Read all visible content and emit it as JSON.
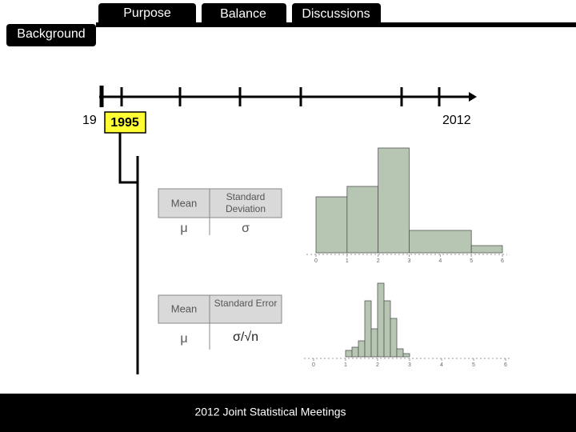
{
  "tabs": [
    "Purpose",
    "Balance",
    "Discussions"
  ],
  "section": "Background",
  "timeline": {
    "start_label": "19",
    "highlight": "1995",
    "end_label": "2012"
  },
  "tables": [
    {
      "headers": [
        "Mean",
        "Standard Deviation"
      ],
      "symbols": [
        "μ",
        "σ"
      ]
    },
    {
      "headers": [
        "Mean",
        "Standard Error"
      ],
      "symbols": [
        "μ",
        "σ/√n"
      ]
    }
  ],
  "chart_data": [
    {
      "type": "histogram",
      "bins": [
        0,
        1,
        2,
        3,
        5,
        6
      ],
      "counts": [
        70,
        83,
        131,
        28,
        9
      ],
      "xlim": [
        0,
        6
      ],
      "xticks": [
        0,
        1,
        2,
        3,
        4,
        5,
        6
      ],
      "color": "#b7c6b3"
    },
    {
      "type": "histogram",
      "bins": [
        1,
        1.2,
        1.4,
        1.6,
        1.8,
        2,
        2.2,
        2.4,
        2.6,
        2.8,
        3
      ],
      "counts": [
        8,
        12,
        20,
        70,
        35,
        92,
        70,
        48,
        10,
        4
      ],
      "xlim": [
        0,
        6
      ],
      "xticks": [
        0,
        1,
        2,
        3,
        4,
        5,
        6
      ],
      "color": "#b7c6b3"
    }
  ],
  "footer": "2012 Joint Statistical Meetings"
}
